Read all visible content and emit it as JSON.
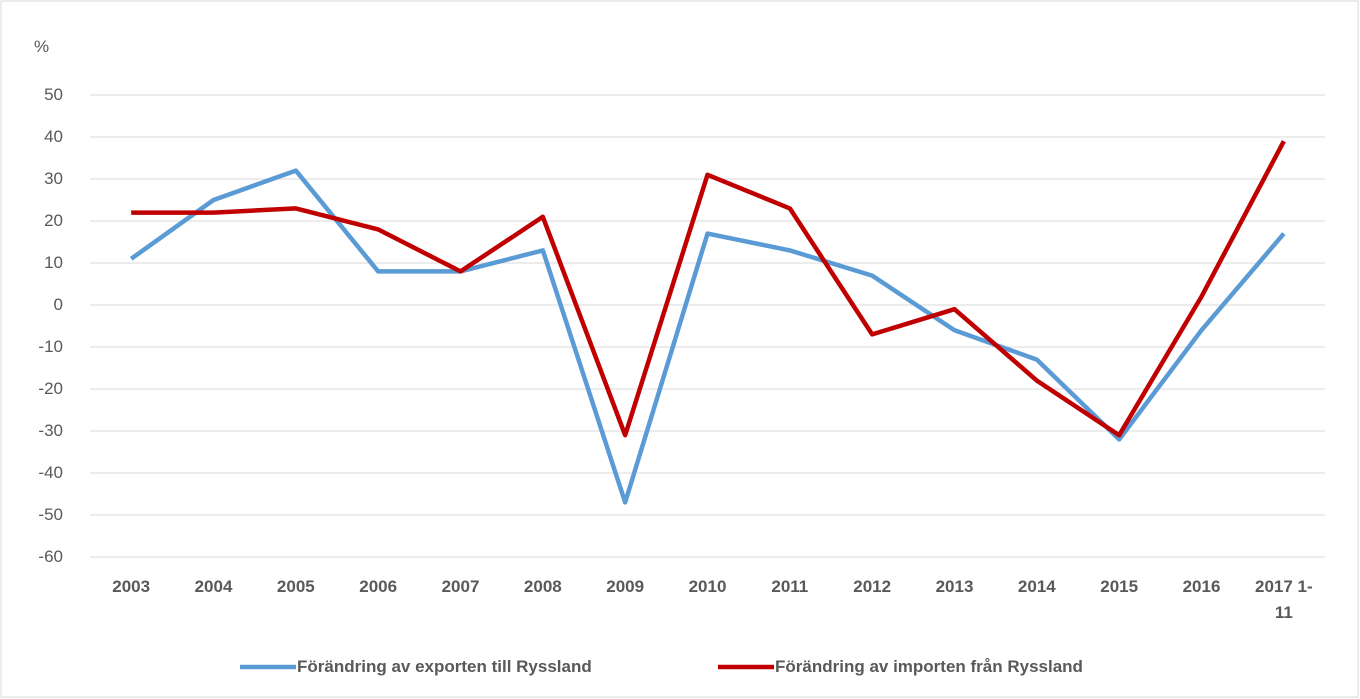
{
  "chart_data": {
    "type": "line",
    "y_label": "%",
    "categories": [
      "2003",
      "2004",
      "2005",
      "2006",
      "2007",
      "2008",
      "2009",
      "2010",
      "2011",
      "2012",
      "2013",
      "2014",
      "2015",
      "2016",
      "2017 1-11"
    ],
    "series": [
      {
        "name": "Förändring av exporten till Ryssland",
        "color": "#5b9bd5",
        "values": [
          11,
          25,
          32,
          8,
          8,
          13,
          -47,
          17,
          13,
          7,
          -6,
          -13,
          -32,
          -6,
          17
        ]
      },
      {
        "name": "Förändring av importen från Ryssland",
        "color": "#c00000",
        "values": [
          22,
          22,
          23,
          18,
          8,
          21,
          -31,
          31,
          23,
          -7,
          -1,
          -18,
          -31,
          2,
          39
        ]
      }
    ],
    "ylim": [
      -60,
      50
    ],
    "yticks": [
      -60,
      -50,
      -40,
      -30,
      -20,
      -10,
      0,
      10,
      20,
      30,
      40,
      50
    ],
    "grid": true,
    "legend": "bottom"
  }
}
